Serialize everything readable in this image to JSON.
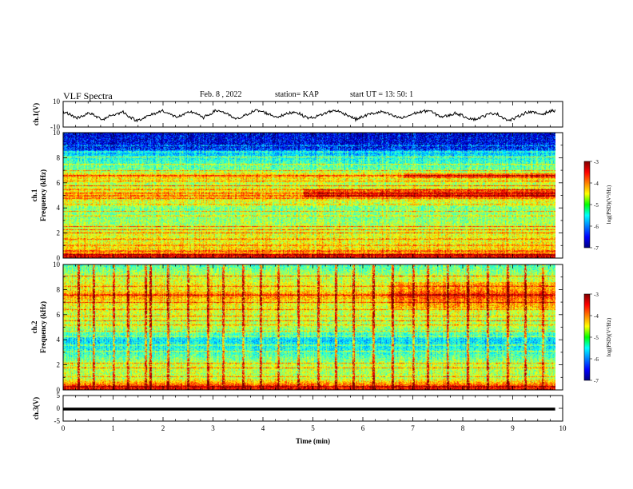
{
  "header": {
    "title": "VLF Spectra",
    "date": "Feb. 8 , 2022",
    "station": "station= KAP",
    "start": "start UT =  13: 50: 1"
  },
  "chart_data": [
    {
      "type": "line",
      "panel": "ch1-waveform",
      "ylabel": "ch.1(V)",
      "ylim": [
        -10,
        10
      ],
      "y_ticks": [
        "10",
        "-10"
      ],
      "x_range_min": [
        0,
        9.85
      ],
      "approx_values_V": [
        2,
        0,
        -3,
        -1,
        1,
        -2,
        -4,
        -1,
        0,
        2,
        -2,
        -5,
        -3,
        -1,
        1,
        3,
        0,
        -2,
        -1,
        2,
        1,
        -3,
        0,
        3,
        2,
        -1,
        -4,
        -2,
        1,
        3,
        2,
        0,
        -2,
        -1,
        1,
        2,
        -1,
        -3,
        -2,
        0,
        2,
        3,
        1,
        -1,
        -4,
        -2,
        0,
        1,
        2,
        0,
        -2,
        -3,
        -1,
        1,
        2,
        3,
        0,
        -2,
        -1,
        1,
        -1,
        -3,
        -4,
        -2,
        0,
        1,
        -2,
        -5,
        -3,
        0,
        2,
        1,
        0,
        2,
        3
      ]
    },
    {
      "type": "heatmap",
      "panel": "ch1-spectrogram",
      "ylabel": "ch.1 Frequency (kHz)",
      "y_ticks": [
        "0",
        "2",
        "4",
        "6",
        "8",
        "10"
      ],
      "ylim_kHz": [
        0,
        10
      ],
      "colorbar": {
        "label": "log(PSD)(V²/Hz)",
        "ticks": [
          "-3",
          "-4",
          "-5",
          "-6",
          "-7"
        ],
        "range": [
          -7,
          -3
        ]
      },
      "approx_mean_logpsd_by_freq": [
        [
          0.2,
          -3.4
        ],
        [
          0.5,
          -4.2
        ],
        [
          1.0,
          -4.5
        ],
        [
          2.0,
          -4.6
        ],
        [
          3.0,
          -4.9
        ],
        [
          4.0,
          -5.0
        ],
        [
          5.0,
          -4.3
        ],
        [
          6.0,
          -4.8
        ],
        [
          6.6,
          -4.2
        ],
        [
          7.0,
          -5.0
        ],
        [
          8.0,
          -5.4
        ],
        [
          9.0,
          -6.3
        ],
        [
          10.0,
          -6.4
        ]
      ],
      "bands_kHz": [
        0.3,
        0.6,
        1.05,
        1.55,
        2.05,
        2.3,
        2.55,
        3.4,
        3.75,
        4.3,
        4.8,
        5.0,
        5.2,
        5.5,
        5.8,
        6.15,
        6.6,
        7.0,
        7.5,
        8.1,
        8.5,
        9.0
      ]
    },
    {
      "type": "heatmap",
      "panel": "ch2-spectrogram",
      "ylabel": "ch.2 Frequency (kHz)",
      "y_ticks": [
        "0",
        "2",
        "4",
        "6",
        "8",
        "10"
      ],
      "ylim_kHz": [
        0,
        10
      ],
      "colorbar": {
        "label": "log(PSD)(V²/Hz)",
        "ticks": [
          "-3",
          "-4",
          "-5",
          "-6",
          "-7"
        ],
        "range": [
          -7,
          -3
        ]
      },
      "approx_mean_logpsd_by_freq": [
        [
          0.2,
          -3.5
        ],
        [
          1.0,
          -4.8
        ],
        [
          2.0,
          -4.7
        ],
        [
          3.0,
          -5.3
        ],
        [
          4.0,
          -5.6
        ],
        [
          5.0,
          -4.8
        ],
        [
          6.0,
          -4.7
        ],
        [
          7.0,
          -4.5
        ],
        [
          7.6,
          -4.0
        ],
        [
          8.0,
          -4.5
        ],
        [
          9.0,
          -4.7
        ],
        [
          10.0,
          -5.2
        ]
      ],
      "bands_kHz": [
        0.3,
        1.1,
        1.8,
        2.15,
        3.1,
        3.6,
        4.3,
        4.7,
        5.2,
        5.55,
        5.9,
        6.45,
        7.0,
        7.6,
        8.3,
        9.1
      ],
      "impulse_times_min": [
        0.3,
        0.6,
        1.0,
        1.3,
        1.65,
        1.75,
        2.1,
        2.5,
        2.9,
        3.2,
        3.6,
        3.95,
        4.3,
        4.7,
        5.1,
        5.45,
        5.8,
        6.2,
        6.6,
        7.0,
        7.3,
        7.7,
        8.1,
        8.5,
        8.9,
        9.25,
        9.6
      ]
    },
    {
      "type": "line",
      "panel": "ch3-waveform",
      "ylabel": "ch.3(V)",
      "ylim": [
        -5,
        5
      ],
      "y_ticks": [
        "5",
        "0",
        "-5"
      ],
      "approx_value_V": -0.3,
      "approx_thickness_V": 1.1
    },
    {
      "type": "axis",
      "panel": "time-axis",
      "xlabel": "Time (min)",
      "xlim": [
        0,
        10
      ],
      "x_ticks": [
        "0",
        "1",
        "2",
        "3",
        "4",
        "5",
        "6",
        "7",
        "8",
        "9",
        "10"
      ]
    }
  ]
}
